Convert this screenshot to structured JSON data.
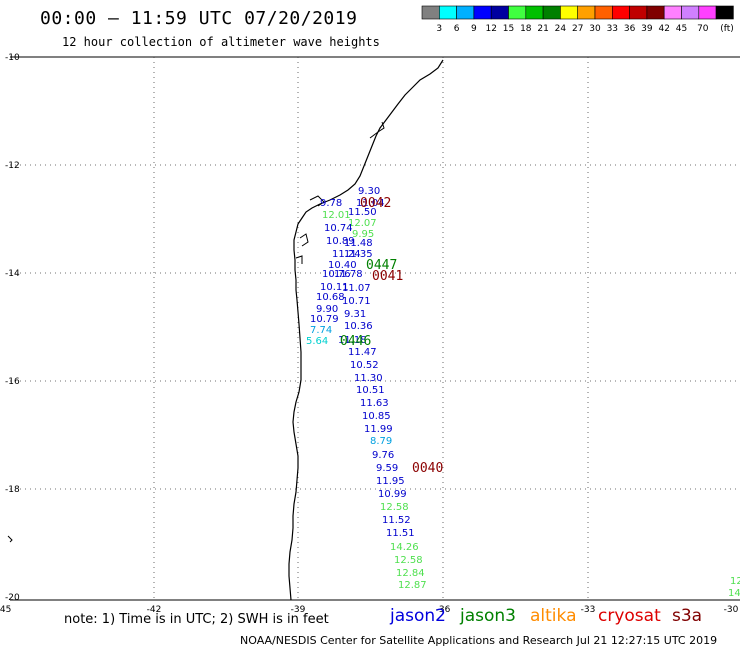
{
  "header": {
    "title": "00:00 – 11:59 UTC 07/20/2019",
    "subtitle": "12 hour collection of altimeter wave heights"
  },
  "legend": {
    "unit": "(ft)",
    "colors": [
      "#808080",
      "#00ffff",
      "#00b0ff",
      "#0000ff",
      "#0000a0",
      "#40ff40",
      "#00c000",
      "#008000",
      "#ffff00",
      "#ffa000",
      "#ff6000",
      "#ff0000",
      "#c00000",
      "#800000",
      "#ff80ff",
      "#d080ff",
      "#ff40ff",
      "#000000"
    ],
    "labels": [
      "3",
      "6",
      "9",
      "12",
      "15",
      "18",
      "21",
      "24",
      "27",
      "30",
      "33",
      "36",
      "39",
      "42",
      "45",
      "70"
    ]
  },
  "axes": {
    "lat_labels": [
      "-10",
      "-12",
      "-14",
      "-16",
      "-18",
      "-20"
    ],
    "lon_labels": [
      "-45",
      "-42",
      "-39",
      "-36",
      "-33",
      "-30"
    ]
  },
  "passes": [
    {
      "label": "0042",
      "color": "#8b0000"
    },
    {
      "label": "0447",
      "color": "#008000"
    },
    {
      "label": "0041",
      "color": "#8b0000"
    },
    {
      "label": "0446",
      "color": "#008000"
    },
    {
      "label": "0040",
      "color": "#8b0000"
    }
  ],
  "observations": [
    {
      "v": "9.30",
      "c": "#0000cc"
    },
    {
      "v": "9.78",
      "c": "#0000cc"
    },
    {
      "v": "11.04",
      "c": "#0000cc"
    },
    {
      "v": "11.50",
      "c": "#0000cc"
    },
    {
      "v": "12.01",
      "c": "#50e050"
    },
    {
      "v": "12.07",
      "c": "#50e050"
    },
    {
      "v": "10.74",
      "c": "#0000cc"
    },
    {
      "v": "9.95",
      "c": "#50e050"
    },
    {
      "v": "10.89",
      "c": "#0000cc"
    },
    {
      "v": "11.48",
      "c": "#0000cc"
    },
    {
      "v": "11.24",
      "c": "#0000cc"
    },
    {
      "v": "11.35",
      "c": "#0000cc"
    },
    {
      "v": "10.40",
      "c": "#0000cc"
    },
    {
      "v": "10.76",
      "c": "#0000cc"
    },
    {
      "v": "11.78",
      "c": "#0000cc"
    },
    {
      "v": "10.11",
      "c": "#0000cc"
    },
    {
      "v": "11.07",
      "c": "#0000cc"
    },
    {
      "v": "10.68",
      "c": "#0000cc"
    },
    {
      "v": "10.71",
      "c": "#0000cc"
    },
    {
      "v": "9.90",
      "c": "#0000cc"
    },
    {
      "v": "9.31",
      "c": "#0000cc"
    },
    {
      "v": "10.79",
      "c": "#0000cc"
    },
    {
      "v": "10.36",
      "c": "#0000cc"
    },
    {
      "v": "7.74",
      "c": "#00a0e0"
    },
    {
      "v": "5.64",
      "c": "#00d0d0"
    },
    {
      "v": "11.18",
      "c": "#0000cc"
    },
    {
      "v": "11.47",
      "c": "#0000cc"
    },
    {
      "v": "10.52",
      "c": "#0000cc"
    },
    {
      "v": "11.30",
      "c": "#0000cc"
    },
    {
      "v": "10.51",
      "c": "#0000cc"
    },
    {
      "v": "11.63",
      "c": "#0000cc"
    },
    {
      "v": "10.85",
      "c": "#0000cc"
    },
    {
      "v": "11.99",
      "c": "#0000cc"
    },
    {
      "v": "8.79",
      "c": "#00a0e0"
    },
    {
      "v": "9.76",
      "c": "#0000cc"
    },
    {
      "v": "9.59",
      "c": "#0000cc"
    },
    {
      "v": "11.95",
      "c": "#0000cc"
    },
    {
      "v": "10.99",
      "c": "#0000cc"
    },
    {
      "v": "12.58",
      "c": "#50e050"
    },
    {
      "v": "11.52",
      "c": "#0000cc"
    },
    {
      "v": "11.51",
      "c": "#0000cc"
    },
    {
      "v": "14.26",
      "c": "#50e050"
    },
    {
      "v": "12.58",
      "c": "#50e050"
    },
    {
      "v": "12.84",
      "c": "#50e050"
    },
    {
      "v": "12.87",
      "c": "#50e050"
    },
    {
      "v": "12",
      "c": "#50e050"
    },
    {
      "v": "14",
      "c": "#50e050"
    }
  ],
  "footer": {
    "note": "note: 1) Time is in UTC; 2) SWH is in feet",
    "satellites": [
      {
        "name": "jason2",
        "color": "#0000dd"
      },
      {
        "name": "jason3",
        "color": "#008000"
      },
      {
        "name": "altika",
        "color": "#ff8c00"
      },
      {
        "name": "cryosat",
        "color": "#dd0000"
      },
      {
        "name": "s3a",
        "color": "#800000"
      }
    ],
    "credit": "NOAA/NESDIS Center for Satellite Applications and Research   Jul 21 12:27:15 UTC 2019"
  }
}
